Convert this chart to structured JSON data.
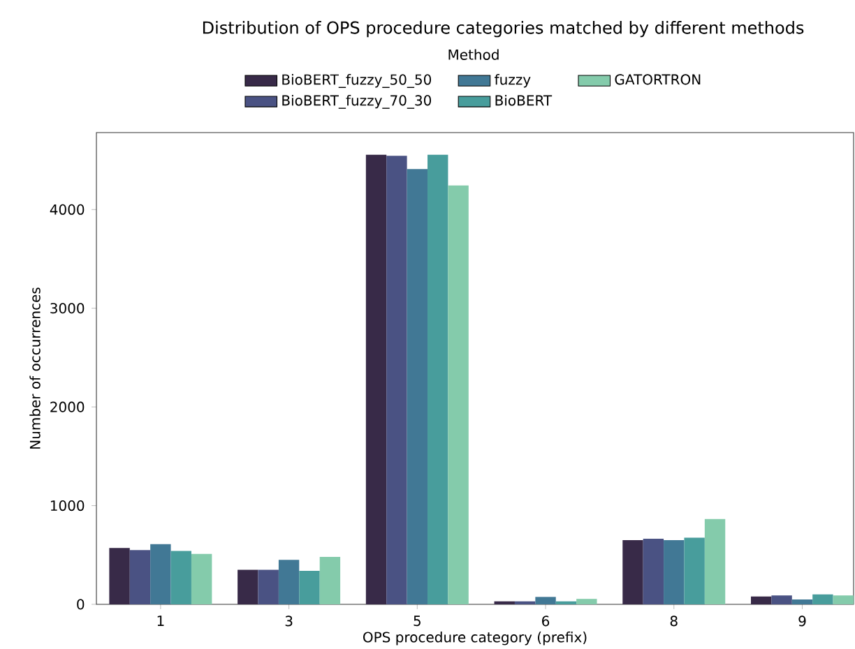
{
  "chart_data": {
    "type": "bar",
    "title": "Distribution of OPS procedure categories matched by different methods",
    "xlabel": "OPS procedure category (prefix)",
    "ylabel": "Number of occurrences",
    "legend_title": "Method",
    "categories": [
      "1",
      "3",
      "5",
      "6",
      "8",
      "9"
    ],
    "series": [
      {
        "name": "BioBERT_fuzzy_50_50",
        "color": "#382a48",
        "values": [
          570,
          350,
          4555,
          30,
          650,
          80
        ]
      },
      {
        "name": "BioBERT_fuzzy_70_30",
        "color": "#4a5283",
        "values": [
          550,
          350,
          4545,
          30,
          665,
          90
        ]
      },
      {
        "name": "fuzzy",
        "color": "#417895",
        "values": [
          610,
          450,
          4410,
          75,
          650,
          50
        ]
      },
      {
        "name": "BioBERT",
        "color": "#489d9c",
        "values": [
          540,
          340,
          4555,
          30,
          675,
          100
        ]
      },
      {
        "name": "GATORTRON",
        "color": "#84cbab",
        "values": [
          510,
          480,
          4245,
          55,
          865,
          90
        ]
      }
    ],
    "ylim": [
      0,
      4780
    ],
    "yticks": [
      0,
      1000,
      2000,
      3000,
      4000
    ],
    "legend": "top",
    "grid": false
  }
}
